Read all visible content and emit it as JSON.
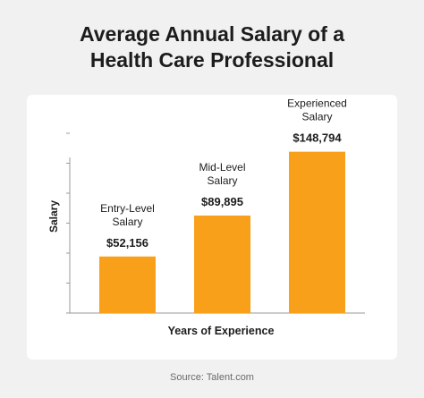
{
  "title_line1": "Average Annual Salary of a",
  "title_line2": "Health Care Professional",
  "source": "Source: Talent.com",
  "colors": {
    "background": "#f1f1f1",
    "card": "#ffffff",
    "bar": "#f9a01b",
    "text": "#1c1c1c",
    "axis": "#9a9a9a"
  },
  "chart_data": {
    "type": "bar",
    "title": "Average Annual Salary of a Health Care Professional",
    "xlabel": "Years of Experience",
    "ylabel": "Salary",
    "categories": [
      [
        "Entry-Level",
        "Salary"
      ],
      [
        "Mid-Level",
        "Salary"
      ],
      [
        "Experienced",
        "Salary"
      ]
    ],
    "values": [
      52156,
      89895,
      148794
    ],
    "value_labels": [
      "$52,156",
      "$89,895",
      "$148,794"
    ],
    "ylim": [
      0,
      165000
    ],
    "y_tick_count": 7,
    "grid": false,
    "legend": "none"
  }
}
